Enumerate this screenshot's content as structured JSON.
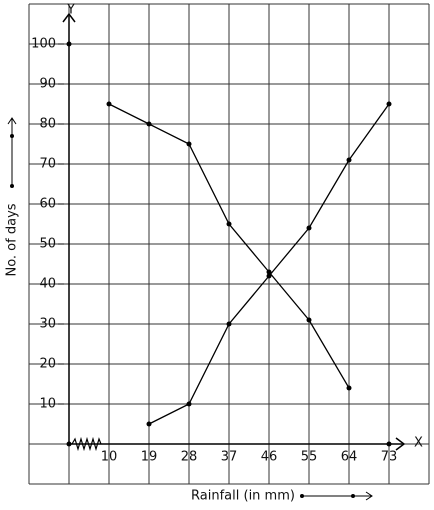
{
  "chart_data": {
    "type": "line",
    "xlabel": "Rainfall (in mm)",
    "ylabel": "No. of days",
    "x_axis_letter": "X",
    "y_axis_letter": "Y",
    "categories": [
      "10",
      "19",
      "28",
      "37",
      "46",
      "55",
      "64",
      "73"
    ],
    "series": [
      {
        "color": "#000000",
        "values": [
          null,
          5,
          10,
          30,
          42,
          54,
          71,
          85
        ]
      },
      {
        "color": "#000000",
        "values": [
          85,
          80,
          75,
          55,
          43,
          31,
          14,
          null
        ]
      }
    ],
    "ylim": [
      -10,
      110
    ],
    "yticks": [
      10,
      20,
      30,
      40,
      50,
      60,
      70,
      80,
      90,
      100
    ],
    "grid": true
  }
}
